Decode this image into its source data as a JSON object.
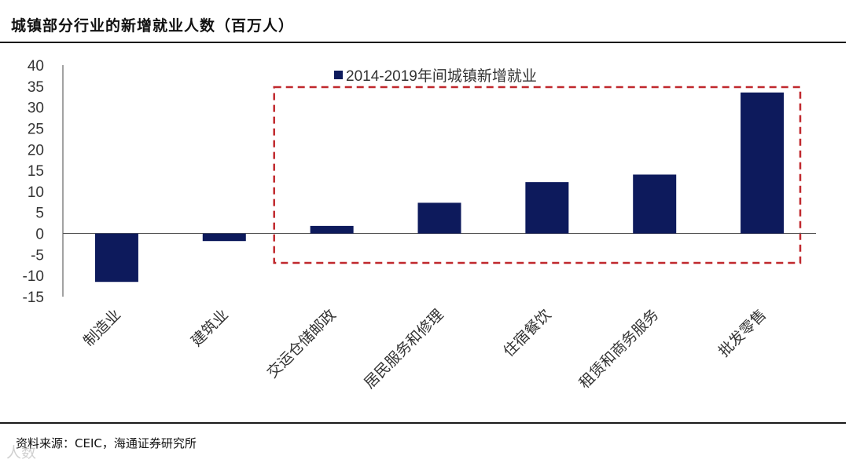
{
  "title": "城镇部分行业的新增就业人数（百万人）",
  "source": "资料来源：CEIC，海通证券研究所",
  "watermark": "人数",
  "colors": {
    "bar": "#0d1a5c",
    "highlight_box": "#c0282d",
    "rule": "#1a1a1a"
  },
  "chart_data": {
    "type": "bar",
    "title": "城镇部分行业的新增就业人数（百万人）",
    "xlabel": "",
    "ylabel": "",
    "ylim": [
      -15,
      40
    ],
    "yticks": [
      40,
      35,
      30,
      25,
      20,
      15,
      10,
      5,
      0,
      -5,
      -10,
      -15
    ],
    "grid": false,
    "legend_position": "top-center",
    "categories": [
      "制造业",
      "建筑业",
      "交运仓储邮政",
      "居民服务和修理",
      "住宿餐饮",
      "租赁和商务服务",
      "批发零售"
    ],
    "series": [
      {
        "name": "2014-2019年间城镇新增就业",
        "values": [
          -11.5,
          -1.8,
          1.8,
          7.3,
          12.2,
          14.0,
          33.5
        ]
      }
    ]
  }
}
